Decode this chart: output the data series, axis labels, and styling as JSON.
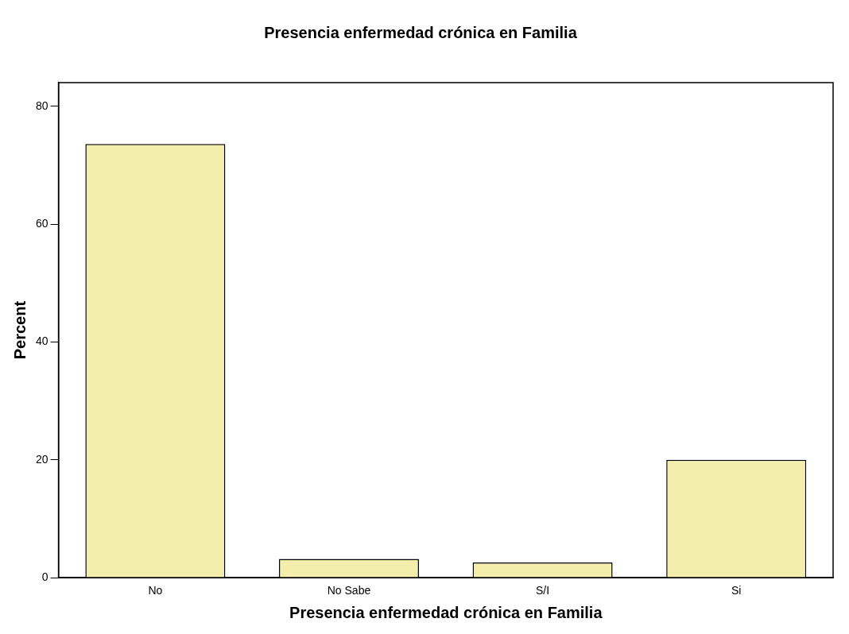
{
  "chart_data": {
    "type": "bar",
    "title": "Presencia enfermedad crónica en Familia",
    "xlabel": "Presencia enfermedad crónica en Familia",
    "ylabel": "Percent",
    "categories": [
      "No",
      "No Sabe",
      "S/I",
      "Si"
    ],
    "values": [
      73.6,
      3.2,
      2.6,
      20.0
    ],
    "color": "#f3eeab",
    "ylim": [
      0,
      84
    ],
    "yticks": [
      0,
      20,
      40,
      60,
      80
    ],
    "grid": false,
    "legend": false
  }
}
